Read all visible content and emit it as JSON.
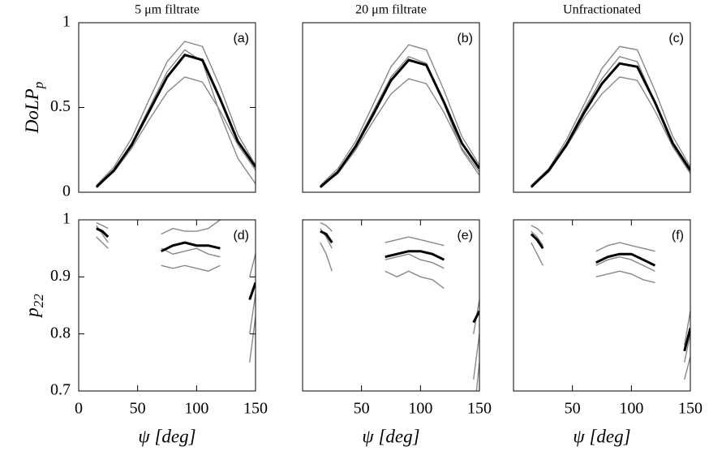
{
  "chart_data": [
    {
      "type": "line",
      "title": "5 μm filtrate",
      "label": "(a)",
      "ylabel": "DoLP",
      "ylabel_sub": "p",
      "x": [
        15,
        30,
        45,
        60,
        75,
        90,
        105,
        120,
        135,
        150
      ],
      "xlim": [
        0,
        150
      ],
      "ylim": [
        0,
        1
      ],
      "yticks": [
        0,
        0.5,
        1
      ],
      "series": [
        {
          "color": "#888888",
          "values": [
            0.04,
            0.15,
            0.32,
            0.55,
            0.77,
            0.89,
            0.86,
            0.62,
            0.34,
            0.16
          ]
        },
        {
          "color": "#888888",
          "values": [
            0.03,
            0.12,
            0.26,
            0.43,
            0.59,
            0.68,
            0.65,
            0.48,
            0.28,
            0.13
          ]
        },
        {
          "color": "#888888",
          "values": [
            0.03,
            0.13,
            0.29,
            0.5,
            0.71,
            0.84,
            0.77,
            0.46,
            0.2,
            0.05
          ]
        },
        {
          "color": "#000000",
          "values": [
            0.03,
            0.13,
            0.28,
            0.48,
            0.68,
            0.81,
            0.78,
            0.55,
            0.3,
            0.15
          ]
        }
      ]
    },
    {
      "type": "line",
      "title": "20 μm filtrate",
      "label": "(b)",
      "x": [
        15,
        30,
        45,
        60,
        75,
        90,
        105,
        120,
        135,
        150
      ],
      "xlim": [
        0,
        150
      ],
      "ylim": [
        0,
        1
      ],
      "series": [
        {
          "color": "#888888",
          "values": [
            0.04,
            0.14,
            0.3,
            0.52,
            0.74,
            0.87,
            0.84,
            0.6,
            0.33,
            0.16
          ]
        },
        {
          "color": "#888888",
          "values": [
            0.03,
            0.11,
            0.25,
            0.42,
            0.58,
            0.67,
            0.64,
            0.47,
            0.26,
            0.12
          ]
        },
        {
          "color": "#888888",
          "values": [
            0.03,
            0.12,
            0.28,
            0.48,
            0.68,
            0.8,
            0.76,
            0.52,
            0.25,
            0.1
          ]
        },
        {
          "color": "#000000",
          "values": [
            0.03,
            0.12,
            0.27,
            0.46,
            0.66,
            0.78,
            0.75,
            0.53,
            0.29,
            0.14
          ]
        }
      ]
    },
    {
      "type": "line",
      "title": "Unfractionated",
      "label": "(c)",
      "x": [
        15,
        30,
        45,
        60,
        75,
        90,
        105,
        120,
        135,
        150
      ],
      "xlim": [
        0,
        150
      ],
      "ylim": [
        0,
        1
      ],
      "series": [
        {
          "color": "#888888",
          "values": [
            0.04,
            0.14,
            0.31,
            0.52,
            0.73,
            0.86,
            0.84,
            0.6,
            0.33,
            0.15
          ]
        },
        {
          "color": "#888888",
          "values": [
            0.03,
            0.12,
            0.27,
            0.44,
            0.58,
            0.68,
            0.66,
            0.48,
            0.27,
            0.12
          ]
        },
        {
          "color": "#888888",
          "values": [
            0.03,
            0.13,
            0.29,
            0.49,
            0.67,
            0.8,
            0.77,
            0.53,
            0.27,
            0.11
          ]
        },
        {
          "color": "#000000",
          "values": [
            0.03,
            0.13,
            0.28,
            0.47,
            0.64,
            0.76,
            0.74,
            0.53,
            0.29,
            0.13
          ]
        }
      ]
    },
    {
      "type": "line",
      "label": "(d)",
      "ylabel": "p",
      "ylabel_sub": "22",
      "xlabel": "ψ [deg]",
      "x": [
        15,
        20,
        25,
        47,
        70,
        80,
        90,
        100,
        110,
        120,
        135,
        145,
        150
      ],
      "xlim": [
        0,
        150
      ],
      "ylim": [
        0.7,
        1
      ],
      "xticks": [
        0,
        50,
        100,
        150
      ],
      "yticks": [
        0.7,
        0.8,
        0.9,
        1
      ],
      "series": [
        {
          "color": "#888888",
          "values": [
            0.995,
            0.99,
            0.985,
            null,
            0.975,
            0.985,
            0.98,
            0.98,
            0.985,
            1.0,
            null,
            0.9,
            0.94
          ]
        },
        {
          "color": "#888888",
          "values": [
            0.97,
            0.96,
            0.95,
            null,
            0.92,
            0.915,
            0.92,
            0.915,
            0.91,
            0.92,
            null,
            0.75,
            0.83
          ]
        },
        {
          "color": "#888888",
          "values": [
            0.99,
            0.975,
            0.96,
            null,
            0.95,
            0.94,
            0.945,
            0.95,
            0.94,
            0.935,
            null,
            0.8,
            0.87
          ]
        },
        {
          "color": "#000000",
          "values": [
            0.985,
            0.98,
            0.97,
            null,
            0.945,
            0.955,
            0.96,
            0.955,
            0.955,
            0.95,
            null,
            0.86,
            0.89
          ]
        }
      ]
    },
    {
      "type": "line",
      "label": "(e)",
      "xlabel": "ψ [deg]",
      "x": [
        15,
        20,
        25,
        47,
        70,
        80,
        90,
        100,
        110,
        120,
        135,
        145,
        150
      ],
      "xlim": [
        0,
        150
      ],
      "ylim": [
        0.7,
        1
      ],
      "xticks": [
        50,
        100,
        150
      ],
      "series": [
        {
          "color": "#888888",
          "values": [
            0.995,
            0.99,
            0.98,
            null,
            0.96,
            0.965,
            0.97,
            0.965,
            0.96,
            0.955,
            null,
            0.8,
            0.86
          ]
        },
        {
          "color": "#888888",
          "values": [
            0.96,
            0.94,
            0.91,
            null,
            0.91,
            0.9,
            0.91,
            0.9,
            0.895,
            0.88,
            null,
            0.65,
            0.75
          ]
        },
        {
          "color": "#888888",
          "values": [
            0.985,
            0.97,
            0.95,
            null,
            0.93,
            0.935,
            0.94,
            0.93,
            0.925,
            0.915,
            null,
            0.72,
            0.8
          ]
        },
        {
          "color": "#000000",
          "values": [
            0.98,
            0.975,
            0.96,
            null,
            0.935,
            0.94,
            0.945,
            0.945,
            0.94,
            0.93,
            null,
            0.82,
            0.84
          ]
        }
      ]
    },
    {
      "type": "line",
      "label": "(f)",
      "xlabel": "ψ [deg]",
      "x": [
        15,
        20,
        25,
        47,
        70,
        80,
        90,
        100,
        110,
        120,
        135,
        145,
        150
      ],
      "xlim": [
        0,
        150
      ],
      "ylim": [
        0.7,
        1
      ],
      "xticks": [
        50,
        100,
        150
      ],
      "series": [
        {
          "color": "#888888",
          "values": [
            0.99,
            0.985,
            0.975,
            null,
            0.945,
            0.955,
            0.96,
            0.955,
            0.95,
            0.945,
            null,
            0.78,
            0.84
          ]
        },
        {
          "color": "#888888",
          "values": [
            0.96,
            0.94,
            0.92,
            null,
            0.9,
            0.905,
            0.91,
            0.905,
            0.895,
            0.89,
            null,
            0.72,
            0.76
          ]
        },
        {
          "color": "#888888",
          "values": [
            0.98,
            0.97,
            0.955,
            null,
            0.92,
            0.93,
            0.935,
            0.93,
            0.92,
            0.91,
            null,
            0.75,
            0.8
          ]
        },
        {
          "color": "#000000",
          "values": [
            0.975,
            0.965,
            0.95,
            null,
            0.925,
            0.935,
            0.94,
            0.94,
            0.93,
            0.92,
            null,
            0.77,
            0.81
          ]
        }
      ]
    }
  ]
}
